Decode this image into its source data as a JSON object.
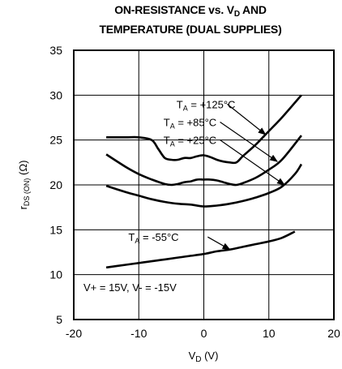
{
  "chart_data": {
    "type": "line",
    "title_line1": "ON-RESISTANCE vs. V",
    "title_line1_sub": "D",
    "title_line1_tail": " AND",
    "title_line2": "TEMPERATURE (DUAL SUPPLIES)",
    "xlabel": "V",
    "xlabel_sub": "D",
    "xlabel_tail": " (V)",
    "ylabel": "r",
    "ylabel_sub": "DS (ON)",
    "ylabel_tail": " (Ω)",
    "xlim": [
      -20,
      20
    ],
    "ylim": [
      5,
      35
    ],
    "xticks": [
      -20,
      -10,
      0,
      10,
      20
    ],
    "yticks": [
      5,
      10,
      15,
      20,
      25,
      30,
      35
    ],
    "grid": true,
    "annotation": "V+ = 15V, V- = -15V",
    "series": [
      {
        "label_pre": "T",
        "label_sub": "A",
        "label_post": " = +125°C",
        "x": [
          -15,
          -12,
          -10,
          -8,
          -7,
          -6,
          -5,
          -4,
          -3,
          -2,
          -1,
          0,
          1,
          2,
          3,
          4,
          5,
          6,
          8,
          10,
          12,
          15
        ],
        "y": [
          25.3,
          25.3,
          25.3,
          25.0,
          24.0,
          23.0,
          22.8,
          22.8,
          23.0,
          23.0,
          23.2,
          23.3,
          23.1,
          22.8,
          22.6,
          22.5,
          22.5,
          23.2,
          24.5,
          26.0,
          27.5,
          30.0
        ]
      },
      {
        "label_pre": "T",
        "label_sub": "A",
        "label_post": " = +85°C",
        "x": [
          -15,
          -12,
          -10,
          -8,
          -6,
          -5,
          -4,
          -3,
          -2,
          -1,
          0,
          1,
          2,
          3,
          4,
          5,
          6,
          8,
          10,
          12,
          15
        ],
        "y": [
          23.4,
          22.0,
          21.2,
          20.6,
          20.1,
          20.0,
          20.1,
          20.3,
          20.4,
          20.6,
          20.6,
          20.6,
          20.5,
          20.3,
          20.1,
          20.0,
          20.2,
          20.8,
          21.7,
          22.8,
          25.5
        ]
      },
      {
        "label_pre": "T",
        "label_sub": "A",
        "label_post": " = +25°C",
        "x": [
          -15,
          -12,
          -10,
          -8,
          -6,
          -4,
          -2,
          0,
          2,
          4,
          6,
          8,
          10,
          12,
          14,
          15
        ],
        "y": [
          19.9,
          19.2,
          18.8,
          18.4,
          18.1,
          17.9,
          17.8,
          17.6,
          17.7,
          17.9,
          18.2,
          18.6,
          19.1,
          19.8,
          21.2,
          22.3
        ]
      },
      {
        "label_pre": "T",
        "label_sub": "A",
        "label_post": " = -55°C",
        "x": [
          -15,
          -12,
          -10,
          -8,
          -6,
          -4,
          -2,
          0,
          2,
          4,
          6,
          8,
          10,
          12,
          14
        ],
        "y": [
          10.8,
          11.1,
          11.3,
          11.5,
          11.7,
          11.9,
          12.1,
          12.3,
          12.6,
          12.8,
          13.1,
          13.4,
          13.7,
          14.1,
          14.8
        ]
      }
    ]
  }
}
